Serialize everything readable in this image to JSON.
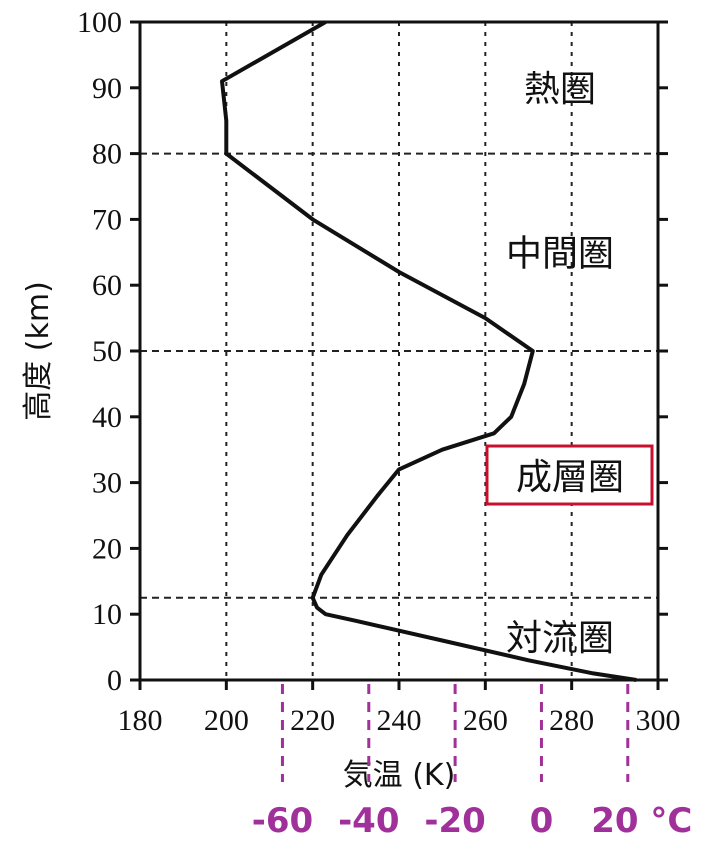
{
  "chart_data": {
    "type": "line",
    "xlabel": "気温 (K)",
    "ylabel": "高度 (km)",
    "xlim": [
      180,
      300
    ],
    "ylim": [
      0,
      100
    ],
    "x_ticks": [
      "180",
      "200",
      "220",
      "240",
      "260",
      "280",
      "300"
    ],
    "y_ticks": [
      "0",
      "10",
      "20",
      "30",
      "40",
      "50",
      "60",
      "70",
      "80",
      "90",
      "100"
    ],
    "grid": "dotted vertical lines at 200, 220, 240, 260, 280 K",
    "layer_boundaries_km": [
      12.5,
      50,
      80
    ],
    "series": [
      {
        "points": [
          [
            295,
            0
          ],
          [
            285,
            1
          ],
          [
            270,
            3
          ],
          [
            250,
            6
          ],
          [
            230,
            9
          ],
          [
            223,
            10
          ],
          [
            221,
            11
          ],
          [
            220,
            12.5
          ],
          [
            222,
            16
          ],
          [
            228,
            22
          ],
          [
            235,
            28
          ],
          [
            240,
            32
          ],
          [
            250,
            35
          ],
          [
            262,
            37.5
          ],
          [
            266,
            40
          ],
          [
            269,
            45
          ],
          [
            271,
            50
          ],
          [
            260,
            55
          ],
          [
            240,
            62
          ],
          [
            220,
            70
          ],
          [
            200,
            80
          ],
          [
            200,
            85
          ],
          [
            199,
            91
          ],
          [
            223,
            100
          ]
        ]
      }
    ],
    "regions": [
      {
        "label": "熱圏",
        "altitude_km": 90,
        "highlight": false
      },
      {
        "label": "中間圏",
        "altitude_km": 65,
        "highlight": false
      },
      {
        "label": "成層圏",
        "altitude_km": 31,
        "highlight": true
      },
      {
        "label": "対流圏",
        "altitude_km": 6.5,
        "highlight": false
      }
    ],
    "celsius_axis": {
      "labels": [
        "-60",
        "-40",
        "-20",
        "0",
        "20 °C"
      ],
      "kelvin_values": [
        213,
        233,
        253,
        273,
        293
      ],
      "color": "#a0309a"
    },
    "colors": {
      "line": "#111111",
      "highlight_box": "#c8102e",
      "celsius": "#a0309a"
    }
  }
}
